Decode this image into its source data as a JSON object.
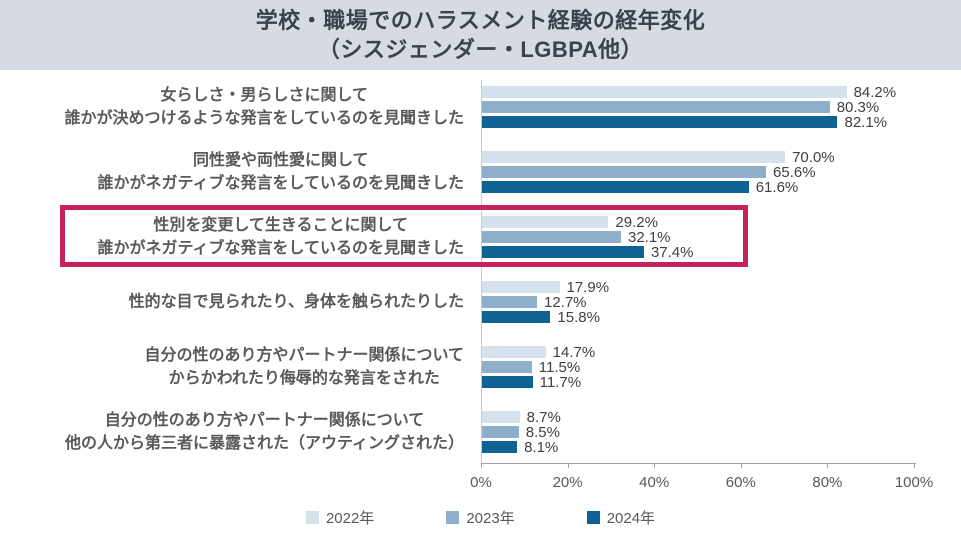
{
  "header": {
    "title_line1": "学校・職場でのハラスメント経験の経年変化",
    "title_line2": "（シスジェンダー・LGBPA他）"
  },
  "chart_data": {
    "type": "bar",
    "orientation": "horizontal",
    "title": "学校・職場でのハラスメント経験の経年変化（シスジェンダー・LGBPA他）",
    "categories": [
      {
        "line1": "女らしさ・男らしさに関して",
        "line2": "誰かが決めつけるような発言をしているのを見聞きした",
        "highlighted": false
      },
      {
        "line1": "同性愛や両性愛に関して",
        "line2": "誰かがネガティブな発言をしているのを見聞きした",
        "highlighted": false
      },
      {
        "line1": "性別を変更して生きることに関して",
        "line2": "誰かがネガティブな発言をしているのを見聞きした",
        "highlighted": true
      },
      {
        "line1": "性的な目で見られたり、身体を触られたりした",
        "line2": "",
        "highlighted": false
      },
      {
        "line1": "自分の性のあり方やパートナー関係について",
        "line2": "からかわれたり侮辱的な発言をされた",
        "highlighted": false
      },
      {
        "line1": "自分の性のあり方やパートナー関係について",
        "line2": "他の人から第三者に暴露された（アウティングされた）",
        "highlighted": false
      }
    ],
    "series": [
      {
        "name": "2022年",
        "color": "#d5e2ee",
        "values": [
          "84.2",
          "70.0",
          "29.2",
          "17.9",
          "14.7",
          "8.7"
        ]
      },
      {
        "name": "2023年",
        "color": "#8dafcb",
        "values": [
          "80.3",
          "65.6",
          "32.1",
          "12.7",
          "11.5",
          "8.5"
        ]
      },
      {
        "name": "2024年",
        "color": "#0e6394",
        "values": [
          "82.1",
          "61.6",
          "37.4",
          "15.8",
          "11.7",
          "8.1"
        ]
      }
    ],
    "value_suffix": "%",
    "xlim": [
      0,
      100
    ],
    "x_ticks": [
      "0%",
      "20%",
      "40%",
      "60%",
      "80%",
      "100%"
    ],
    "grid": "off",
    "legend_position": "bottom-center",
    "highlight_color": "#c4215f"
  }
}
